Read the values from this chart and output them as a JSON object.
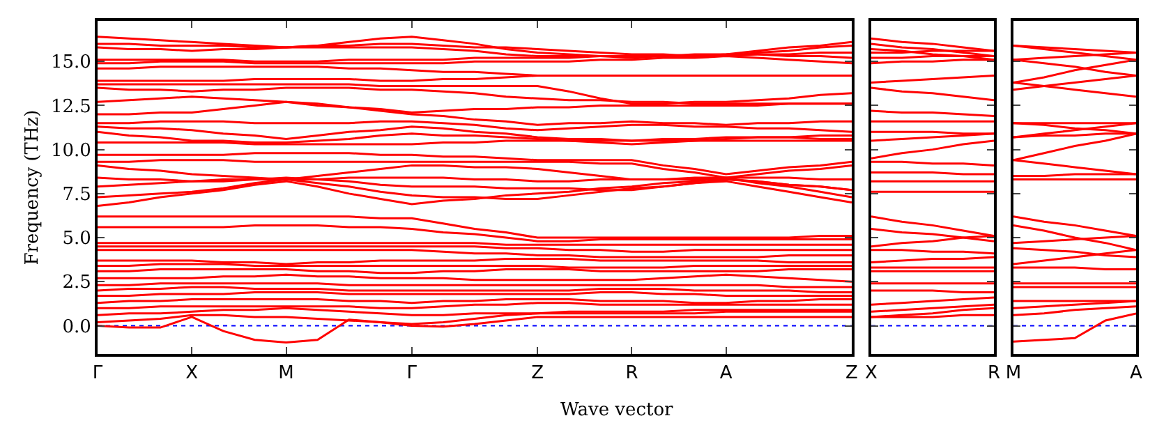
{
  "chart_data": [
    {
      "type": "line",
      "xlabel": "Wave vector",
      "ylabel": "Frequency (THz)",
      "categories": [
        "Γ",
        null,
        null,
        "X",
        null,
        null,
        "M",
        null,
        null,
        null,
        "Γ",
        null,
        null,
        null,
        "Z",
        null,
        null,
        "R",
        null,
        null,
        "A",
        null,
        null,
        null,
        "Z"
      ],
      "ylim": [
        -1.6,
        17.3
      ],
      "yticks": [
        {
          "value": 0,
          "label": "0.0"
        },
        {
          "value": 2.5,
          "label": "2.5"
        },
        {
          "value": 5,
          "label": "5.0"
        },
        {
          "value": 7.5,
          "label": "7.5"
        },
        {
          "value": 10,
          "label": "10.0"
        },
        {
          "value": 12.5,
          "label": "12.5"
        },
        {
          "value": 15,
          "label": "15.0"
        }
      ],
      "ref_lines": [
        {
          "axis": "y",
          "value": 0,
          "color": "#0000ff",
          "line_style": "dotted"
        }
      ],
      "grid": false,
      "line_style": "solid",
      "series": [
        {
          "color": "#ff0000",
          "values": [
            16.4,
            16.3,
            16.2,
            16.1,
            16.0,
            15.9,
            15.8,
            15.9,
            16.1,
            16.3,
            16.4,
            16.2,
            16.0,
            15.7,
            15.5,
            15.4,
            15.3,
            15.2,
            15.3,
            15.3,
            15.4,
            15.6,
            15.8,
            15.9,
            16.1
          ]
        },
        {
          "color": "#ff0000",
          "values": [
            16.0,
            16.0,
            15.9,
            15.9,
            15.9,
            15.8,
            15.8,
            15.9,
            15.9,
            16.0,
            16.0,
            15.9,
            15.8,
            15.8,
            15.7,
            15.6,
            15.5,
            15.4,
            15.4,
            15.3,
            15.3,
            15.5,
            15.6,
            15.8,
            15.9
          ]
        },
        {
          "color": "#ff0000",
          "values": [
            15.8,
            15.7,
            15.7,
            15.6,
            15.7,
            15.7,
            15.8,
            15.8,
            15.8,
            15.8,
            15.8,
            15.7,
            15.6,
            15.4,
            15.3,
            15.3,
            15.3,
            15.3,
            15.3,
            15.3,
            15.3,
            15.4,
            15.4,
            15.5,
            15.5
          ]
        },
        {
          "color": "#ff0000",
          "values": [
            15.1,
            15.1,
            15.1,
            15.1,
            15.1,
            15.0,
            15.0,
            15.0,
            15.1,
            15.1,
            15.1,
            15.1,
            15.2,
            15.2,
            15.2,
            15.2,
            15.3,
            15.3,
            15.3,
            15.4,
            15.4,
            15.4,
            15.3,
            15.3,
            15.2
          ]
        },
        {
          "color": "#ff0000",
          "values": [
            14.9,
            14.9,
            15.0,
            15.0,
            15.0,
            14.9,
            14.9,
            14.9,
            14.9,
            14.9,
            14.9,
            14.9,
            15.0,
            15.0,
            15.0,
            15.0,
            15.1,
            15.1,
            15.2,
            15.2,
            15.3,
            15.2,
            15.1,
            15.0,
            14.9
          ]
        },
        {
          "color": "#ff0000",
          "values": [
            14.6,
            14.6,
            14.7,
            14.7,
            14.7,
            14.7,
            14.7,
            14.7,
            14.6,
            14.6,
            14.5,
            14.4,
            14.4,
            14.3,
            14.2,
            14.2,
            14.2,
            14.2,
            14.2,
            14.2,
            14.2,
            14.2,
            14.2,
            14.2,
            14.2
          ]
        },
        {
          "color": "#ff0000",
          "values": [
            13.9,
            13.9,
            13.9,
            13.9,
            13.9,
            14.0,
            14.0,
            14.0,
            14.0,
            13.9,
            13.9,
            14.0,
            14.0,
            14.1,
            14.2,
            14.2,
            14.2,
            14.2,
            14.2,
            14.2,
            14.2,
            14.2,
            14.2,
            14.2,
            14.2
          ]
        },
        {
          "color": "#ff0000",
          "values": [
            13.7,
            13.7,
            13.7,
            13.7,
            13.7,
            13.7,
            13.7,
            13.7,
            13.7,
            13.6,
            13.6,
            13.6,
            13.6,
            13.6,
            13.6,
            13.3,
            12.9,
            12.6,
            12.6,
            12.7,
            12.7,
            12.8,
            12.9,
            13.1,
            13.2
          ]
        },
        {
          "color": "#ff0000",
          "values": [
            13.5,
            13.4,
            13.4,
            13.3,
            13.4,
            13.4,
            13.5,
            13.5,
            13.5,
            13.4,
            13.4,
            13.3,
            13.2,
            13.0,
            12.9,
            12.8,
            12.8,
            12.7,
            12.7,
            12.6,
            12.6,
            12.6,
            12.6,
            12.6,
            12.6
          ]
        },
        {
          "color": "#ff0000",
          "values": [
            12.7,
            12.8,
            12.9,
            13.0,
            12.9,
            12.8,
            12.7,
            12.6,
            12.4,
            12.3,
            12.1,
            12.2,
            12.3,
            12.3,
            12.4,
            12.4,
            12.5,
            12.5,
            12.5,
            12.5,
            12.5,
            12.5,
            12.6,
            12.6,
            12.6
          ]
        },
        {
          "color": "#ff0000",
          "values": [
            12.0,
            12.0,
            12.1,
            12.1,
            12.3,
            12.5,
            12.7,
            12.5,
            12.4,
            12.2,
            12.0,
            11.9,
            11.7,
            11.6,
            11.4,
            11.5,
            11.5,
            11.6,
            11.5,
            11.5,
            11.4,
            11.5,
            11.5,
            11.6,
            11.6
          ]
        },
        {
          "color": "#ff0000",
          "values": [
            11.5,
            11.5,
            11.6,
            11.6,
            11.6,
            11.5,
            11.5,
            11.5,
            11.5,
            11.6,
            11.6,
            11.5,
            11.4,
            11.2,
            11.1,
            11.2,
            11.3,
            11.4,
            11.4,
            11.3,
            11.3,
            11.2,
            11.2,
            11.1,
            11.0
          ]
        },
        {
          "color": "#ff0000",
          "values": [
            11.3,
            11.2,
            11.2,
            11.1,
            10.9,
            10.8,
            10.6,
            10.8,
            11.0,
            11.1,
            11.3,
            11.2,
            11.0,
            10.9,
            10.7,
            10.6,
            10.6,
            10.5,
            10.6,
            10.6,
            10.7,
            10.7,
            10.7,
            10.6,
            10.6
          ]
        },
        {
          "color": "#ff0000",
          "values": [
            11.0,
            10.8,
            10.7,
            10.5,
            10.5,
            10.4,
            10.4,
            10.5,
            10.6,
            10.8,
            10.9,
            10.8,
            10.8,
            10.7,
            10.6,
            10.5,
            10.4,
            10.3,
            10.4,
            10.5,
            10.6,
            10.7,
            10.7,
            10.8,
            10.8
          ]
        },
        {
          "color": "#ff0000",
          "values": [
            10.4,
            10.4,
            10.4,
            10.4,
            10.4,
            10.3,
            10.3,
            10.3,
            10.3,
            10.3,
            10.3,
            10.4,
            10.4,
            10.5,
            10.5,
            10.5,
            10.5,
            10.5,
            10.5,
            10.5,
            10.5,
            10.5,
            10.5,
            10.5,
            10.5
          ]
        },
        {
          "color": "#ff0000",
          "values": [
            9.7,
            9.7,
            9.7,
            9.7,
            9.7,
            9.8,
            9.8,
            9.8,
            9.8,
            9.7,
            9.7,
            9.6,
            9.6,
            9.5,
            9.4,
            9.4,
            9.4,
            9.4,
            9.1,
            8.9,
            8.6,
            8.8,
            9.0,
            9.1,
            9.3
          ]
        },
        {
          "color": "#ff0000",
          "values": [
            9.3,
            9.3,
            9.4,
            9.4,
            9.4,
            9.3,
            9.3,
            9.3,
            9.3,
            9.3,
            9.3,
            9.3,
            9.3,
            9.3,
            9.3,
            9.3,
            9.2,
            9.2,
            8.9,
            8.7,
            8.4,
            8.6,
            8.8,
            8.9,
            9.1
          ]
        },
        {
          "color": "#ff0000",
          "values": [
            9.1,
            8.9,
            8.8,
            8.6,
            8.5,
            8.4,
            8.3,
            8.5,
            8.7,
            8.9,
            9.1,
            9.1,
            9.0,
            9.0,
            8.9,
            8.7,
            8.5,
            8.3,
            8.3,
            8.4,
            8.4,
            8.4,
            8.4,
            8.3,
            8.3
          ]
        },
        {
          "color": "#ff0000",
          "values": [
            8.4,
            8.3,
            8.3,
            8.2,
            8.2,
            8.3,
            8.3,
            8.3,
            8.4,
            8.4,
            8.4,
            8.4,
            8.3,
            8.3,
            8.2,
            8.2,
            8.3,
            8.3,
            8.3,
            8.3,
            8.3,
            8.2,
            8.0,
            7.9,
            7.7
          ]
        },
        {
          "color": "#ff0000",
          "values": [
            7.9,
            8.0,
            8.1,
            8.2,
            8.3,
            8.3,
            8.4,
            8.3,
            8.2,
            8.0,
            7.9,
            7.9,
            7.9,
            7.8,
            7.8,
            7.8,
            7.7,
            7.7,
            7.9,
            8.1,
            8.3,
            8.2,
            8.0,
            7.9,
            7.7
          ]
        },
        {
          "color": "#ff0000",
          "values": [
            7.3,
            7.4,
            7.5,
            7.6,
            7.8,
            8.1,
            8.3,
            8.1,
            7.9,
            7.6,
            7.4,
            7.3,
            7.3,
            7.2,
            7.2,
            7.4,
            7.6,
            7.8,
            7.9,
            8.1,
            8.2,
            7.9,
            7.6,
            7.3,
            7.0
          ]
        },
        {
          "color": "#ff0000",
          "values": [
            6.8,
            7.0,
            7.3,
            7.5,
            7.7,
            8.0,
            8.2,
            7.9,
            7.5,
            7.2,
            6.9,
            7.1,
            7.2,
            7.4,
            7.5,
            7.6,
            7.8,
            7.9,
            8.1,
            8.2,
            8.4,
            8.1,
            7.9,
            7.6,
            7.3
          ]
        },
        {
          "color": "#ff0000",
          "values": [
            6.2,
            6.2,
            6.2,
            6.2,
            6.2,
            6.2,
            6.2,
            6.2,
            6.2,
            6.1,
            6.1,
            5.8,
            5.5,
            5.3,
            5.0,
            5.0,
            5.0,
            5.0,
            5.0,
            5.0,
            5.0,
            5.0,
            5.0,
            5.1,
            5.1
          ]
        },
        {
          "color": "#ff0000",
          "values": [
            5.6,
            5.6,
            5.6,
            5.6,
            5.6,
            5.7,
            5.7,
            5.7,
            5.6,
            5.6,
            5.5,
            5.3,
            5.2,
            5.0,
            4.8,
            4.8,
            4.9,
            4.9,
            4.9,
            4.9,
            4.9,
            4.9,
            4.9,
            4.9,
            4.9
          ]
        },
        {
          "color": "#ff0000",
          "values": [
            4.7,
            4.7,
            4.7,
            4.7,
            4.7,
            4.7,
            4.7,
            4.7,
            4.7,
            4.7,
            4.7,
            4.7,
            4.7,
            4.6,
            4.6,
            4.6,
            4.6,
            4.6,
            4.6,
            4.6,
            4.6,
            4.6,
            4.6,
            4.6,
            4.6
          ]
        },
        {
          "color": "#ff0000",
          "values": [
            4.5,
            4.5,
            4.5,
            4.5,
            4.5,
            4.5,
            4.5,
            4.5,
            4.5,
            4.5,
            4.5,
            4.5,
            4.5,
            4.4,
            4.4,
            4.3,
            4.3,
            4.2,
            4.2,
            4.3,
            4.3,
            4.3,
            4.3,
            4.3,
            4.3
          ]
        },
        {
          "color": "#ff0000",
          "values": [
            4.3,
            4.3,
            4.3,
            4.3,
            4.3,
            4.3,
            4.3,
            4.3,
            4.3,
            4.3,
            4.3,
            4.2,
            4.1,
            4.1,
            4.0,
            4.0,
            3.9,
            3.9,
            3.9,
            3.9,
            3.9,
            3.9,
            4.0,
            4.0,
            4.0
          ]
        },
        {
          "color": "#ff0000",
          "values": [
            3.7,
            3.7,
            3.7,
            3.7,
            3.6,
            3.6,
            3.5,
            3.6,
            3.6,
            3.7,
            3.7,
            3.7,
            3.7,
            3.8,
            3.8,
            3.8,
            3.7,
            3.7,
            3.7,
            3.7,
            3.7,
            3.7,
            3.6,
            3.6,
            3.6
          ]
        },
        {
          "color": "#ff0000",
          "values": [
            3.4,
            3.4,
            3.5,
            3.5,
            3.5,
            3.4,
            3.4,
            3.4,
            3.4,
            3.4,
            3.4,
            3.4,
            3.4,
            3.4,
            3.4,
            3.3,
            3.3,
            3.3,
            3.3,
            3.4,
            3.4,
            3.4,
            3.4,
            3.4,
            3.4
          ]
        },
        {
          "color": "#ff0000",
          "values": [
            3.1,
            3.1,
            3.2,
            3.2,
            3.2,
            3.2,
            3.2,
            3.1,
            3.1,
            3.0,
            3.0,
            3.1,
            3.1,
            3.2,
            3.2,
            3.2,
            3.1,
            3.1,
            3.1,
            3.1,
            3.1,
            3.1,
            3.2,
            3.2,
            3.2
          ]
        },
        {
          "color": "#ff0000",
          "values": [
            2.7,
            2.7,
            2.7,
            2.7,
            2.8,
            2.8,
            2.9,
            2.8,
            2.8,
            2.7,
            2.7,
            2.7,
            2.6,
            2.6,
            2.6,
            2.6,
            2.6,
            2.6,
            2.7,
            2.8,
            2.9,
            2.8,
            2.7,
            2.6,
            2.5
          ]
        },
        {
          "color": "#ff0000",
          "values": [
            2.3,
            2.3,
            2.4,
            2.4,
            2.4,
            2.4,
            2.4,
            2.4,
            2.3,
            2.3,
            2.3,
            2.3,
            2.3,
            2.3,
            2.3,
            2.3,
            2.3,
            2.3,
            2.3,
            2.3,
            2.3,
            2.3,
            2.2,
            2.2,
            2.2
          ]
        },
        {
          "color": "#ff0000",
          "values": [
            2.0,
            2.1,
            2.1,
            2.2,
            2.2,
            2.1,
            2.1,
            2.1,
            2.0,
            2.0,
            2.0,
            2.0,
            2.0,
            2.0,
            2.0,
            2.0,
            2.1,
            2.1,
            2.1,
            2.0,
            2.0,
            2.0,
            2.0,
            1.9,
            1.9
          ]
        },
        {
          "color": "#ff0000",
          "values": [
            1.7,
            1.7,
            1.8,
            1.8,
            1.8,
            1.9,
            1.9,
            1.9,
            1.8,
            1.8,
            1.8,
            1.8,
            1.8,
            1.8,
            1.8,
            1.8,
            1.9,
            1.9,
            1.8,
            1.8,
            1.7,
            1.7,
            1.7,
            1.7,
            1.7
          ]
        },
        {
          "color": "#ff0000",
          "values": [
            1.3,
            1.4,
            1.4,
            1.5,
            1.5,
            1.5,
            1.5,
            1.5,
            1.4,
            1.4,
            1.3,
            1.4,
            1.4,
            1.5,
            1.5,
            1.5,
            1.4,
            1.4,
            1.4,
            1.3,
            1.3,
            1.4,
            1.4,
            1.5,
            1.5
          ]
        },
        {
          "color": "#ff0000",
          "values": [
            1.0,
            1.0,
            1.1,
            1.1,
            1.1,
            1.1,
            1.1,
            1.1,
            1.1,
            1.0,
            1.0,
            1.1,
            1.2,
            1.2,
            1.3,
            1.3,
            1.2,
            1.2,
            1.2,
            1.2,
            1.2,
            1.2,
            1.2,
            1.2,
            1.2
          ]
        },
        {
          "color": "#ff0000",
          "values": [
            0.6,
            0.7,
            0.7,
            0.8,
            0.9,
            0.9,
            1.0,
            0.9,
            0.8,
            0.7,
            0.6,
            0.6,
            0.7,
            0.7,
            0.7,
            0.8,
            0.8,
            0.8,
            0.8,
            0.9,
            0.9,
            0.9,
            0.9,
            0.9,
            0.9
          ]
        },
        {
          "color": "#ff0000",
          "values": [
            0.2,
            0.3,
            0.4,
            0.6,
            0.6,
            0.5,
            0.5,
            0.4,
            0.3,
            0.2,
            0.1,
            0.2,
            0.4,
            0.6,
            0.7,
            0.7,
            0.7,
            0.7,
            0.7,
            0.7,
            0.8,
            0.8,
            0.8,
            0.8,
            0.8
          ]
        },
        {
          "color": "#ff0000",
          "values": [
            0,
            -0.1,
            -0.1,
            0.5,
            -0.3,
            -0.8,
            -0.95,
            -0.8,
            0.35,
            0.2,
            0,
            -0.05,
            0.1,
            0.3,
            0.5,
            0.5,
            0.5,
            0.5,
            0.5,
            0.5,
            0.5,
            0.5,
            0.5,
            0.5,
            0.5
          ]
        }
      ]
    },
    {
      "type": "line",
      "categories": [
        "X",
        null,
        null,
        null,
        "R"
      ],
      "ylim": [
        -1.6,
        17.3
      ],
      "yticks": [
        {
          "value": 0,
          "label": null
        },
        {
          "value": 2.5,
          "label": null
        },
        {
          "value": 5,
          "label": null
        },
        {
          "value": 7.5,
          "label": null
        },
        {
          "value": 10,
          "label": null
        },
        {
          "value": 12.5,
          "label": null
        },
        {
          "value": 15,
          "label": null
        }
      ],
      "tick_labels": "x",
      "ref_lines": [
        {
          "axis": "y",
          "value": 0,
          "color": "#0000ff",
          "line_style": "dotted"
        }
      ],
      "grid": false,
      "line_style": "solid",
      "series": [
        {
          "color": "#ff0000",
          "values": [
            16.3,
            16.1,
            16.0,
            15.8,
            15.6
          ]
        },
        {
          "color": "#ff0000",
          "values": [
            16.0,
            15.8,
            15.7,
            15.5,
            15.3
          ]
        },
        {
          "color": "#ff0000",
          "values": [
            15.7,
            15.6,
            15.4,
            15.3,
            15.1
          ]
        },
        {
          "color": "#ff0000",
          "values": [
            15.5,
            15.5,
            15.6,
            15.6,
            15.6
          ]
        },
        {
          "color": "#ff0000",
          "values": [
            15.2,
            15.2,
            15.3,
            15.3,
            15.3
          ]
        },
        {
          "color": "#ff0000",
          "values": [
            14.9,
            15.0,
            15.0,
            15.1,
            15.1
          ]
        },
        {
          "color": "#ff0000",
          "values": [
            13.8,
            13.9,
            14.0,
            14.1,
            14.2
          ]
        },
        {
          "color": "#ff0000",
          "values": [
            13.5,
            13.3,
            13.2,
            13.0,
            12.8
          ]
        },
        {
          "color": "#ff0000",
          "values": [
            12.2,
            12.1,
            12.1,
            12.0,
            11.9
          ]
        },
        {
          "color": "#ff0000",
          "values": [
            11.6,
            11.6,
            11.6,
            11.6,
            11.6
          ]
        },
        {
          "color": "#ff0000",
          "values": [
            11.0,
            11.0,
            11.0,
            10.9,
            10.9
          ]
        },
        {
          "color": "#ff0000",
          "values": [
            10.5,
            10.6,
            10.7,
            10.8,
            10.9
          ]
        },
        {
          "color": "#ff0000",
          "values": [
            9.5,
            9.8,
            10.0,
            10.3,
            10.5
          ]
        },
        {
          "color": "#ff0000",
          "values": [
            9.3,
            9.3,
            9.2,
            9.2,
            9.1
          ]
        },
        {
          "color": "#ff0000",
          "values": [
            8.7,
            8.7,
            8.7,
            8.6,
            8.6
          ]
        },
        {
          "color": "#ff0000",
          "values": [
            8.2,
            8.2,
            8.2,
            8.2,
            8.2
          ]
        },
        {
          "color": "#ff0000",
          "values": [
            7.6,
            7.6,
            7.6,
            7.6,
            7.6
          ]
        },
        {
          "color": "#ff0000",
          "values": [
            6.2,
            5.9,
            5.7,
            5.4,
            5.1
          ]
        },
        {
          "color": "#ff0000",
          "values": [
            5.5,
            5.3,
            5.2,
            5.0,
            4.8
          ]
        },
        {
          "color": "#ff0000",
          "values": [
            4.5,
            4.7,
            4.8,
            5.0,
            5.1
          ]
        },
        {
          "color": "#ff0000",
          "values": [
            4.3,
            4.3,
            4.2,
            4.2,
            4.1
          ]
        },
        {
          "color": "#ff0000",
          "values": [
            3.6,
            3.7,
            3.8,
            3.8,
            3.9
          ]
        },
        {
          "color": "#ff0000",
          "values": [
            3.3,
            3.3,
            3.3,
            3.3,
            3.3
          ]
        },
        {
          "color": "#ff0000",
          "values": [
            3.1,
            3.1,
            3.1,
            3.1,
            3.1
          ]
        },
        {
          "color": "#ff0000",
          "values": [
            2.4,
            2.4,
            2.4,
            2.4,
            2.4
          ]
        },
        {
          "color": "#ff0000",
          "values": [
            2.0,
            2.0,
            2.0,
            1.9,
            1.9
          ]
        },
        {
          "color": "#ff0000",
          "values": [
            1.2,
            1.3,
            1.4,
            1.5,
            1.6
          ]
        },
        {
          "color": "#ff0000",
          "values": [
            0.8,
            0.9,
            1.0,
            1.1,
            1.2
          ]
        },
        {
          "color": "#ff0000",
          "values": [
            0.5,
            0.6,
            0.7,
            0.9,
            1.0
          ]
        },
        {
          "color": "#ff0000",
          "values": [
            0.5,
            0.5,
            0.5,
            0.6,
            0.6
          ]
        }
      ]
    },
    {
      "type": "line",
      "categories": [
        "M",
        null,
        null,
        null,
        "A"
      ],
      "ylim": [
        -1.6,
        17.3
      ],
      "yticks": [
        {
          "value": 0,
          "label": null
        },
        {
          "value": 2.5,
          "label": null
        },
        {
          "value": 5,
          "label": null
        },
        {
          "value": 7.5,
          "label": null
        },
        {
          "value": 10,
          "label": null
        },
        {
          "value": 12.5,
          "label": null
        },
        {
          "value": 15,
          "label": null
        }
      ],
      "tick_labels": "x",
      "ref_lines": [
        {
          "axis": "y",
          "value": 0,
          "color": "#0000ff",
          "line_style": "dotted"
        }
      ],
      "grid": false,
      "line_style": "solid",
      "series": [
        {
          "color": "#ff0000",
          "values": [
            15.9,
            15.8,
            15.7,
            15.6,
            15.5
          ]
        },
        {
          "color": "#ff0000",
          "values": [
            15.9,
            15.7,
            15.5,
            15.3,
            15.1
          ]
        },
        {
          "color": "#ff0000",
          "values": [
            15.1,
            15.2,
            15.3,
            15.4,
            15.5
          ]
        },
        {
          "color": "#ff0000",
          "values": [
            15.1,
            14.9,
            14.7,
            14.4,
            14.2
          ]
        },
        {
          "color": "#ff0000",
          "values": [
            13.8,
            13.6,
            13.4,
            13.2,
            13.0
          ]
        },
        {
          "color": "#ff0000",
          "values": [
            13.8,
            14.1,
            14.5,
            14.8,
            15.1
          ]
        },
        {
          "color": "#ff0000",
          "values": [
            13.4,
            13.6,
            13.8,
            14.0,
            14.2
          ]
        },
        {
          "color": "#ff0000",
          "values": [
            11.5,
            11.5,
            11.5,
            11.5,
            11.5
          ]
        },
        {
          "color": "#ff0000",
          "values": [
            11.5,
            11.4,
            11.2,
            11.1,
            10.9
          ]
        },
        {
          "color": "#ff0000",
          "values": [
            10.7,
            10.9,
            11.1,
            11.3,
            11.5
          ]
        },
        {
          "color": "#ff0000",
          "values": [
            10.7,
            10.8,
            10.8,
            10.9,
            10.9
          ]
        },
        {
          "color": "#ff0000",
          "values": [
            9.4,
            9.8,
            10.2,
            10.5,
            10.9
          ]
        },
        {
          "color": "#ff0000",
          "values": [
            9.4,
            9.2,
            9.0,
            8.8,
            8.6
          ]
        },
        {
          "color": "#ff0000",
          "values": [
            8.5,
            8.5,
            8.6,
            8.6,
            8.6
          ]
        },
        {
          "color": "#ff0000",
          "values": [
            8.3,
            8.3,
            8.3,
            8.3,
            8.3
          ]
        },
        {
          "color": "#ff0000",
          "values": [
            6.2,
            5.9,
            5.7,
            5.4,
            5.1
          ]
        },
        {
          "color": "#ff0000",
          "values": [
            5.7,
            5.4,
            5.0,
            4.7,
            4.3
          ]
        },
        {
          "color": "#ff0000",
          "values": [
            4.7,
            4.8,
            4.9,
            5.0,
            5.1
          ]
        },
        {
          "color": "#ff0000",
          "values": [
            4.4,
            4.3,
            4.2,
            4.0,
            3.9
          ]
        },
        {
          "color": "#ff0000",
          "values": [
            3.5,
            3.7,
            3.9,
            4.1,
            4.3
          ]
        },
        {
          "color": "#ff0000",
          "values": [
            3.3,
            3.3,
            3.3,
            3.2,
            3.2
          ]
        },
        {
          "color": "#ff0000",
          "values": [
            2.4,
            2.4,
            2.4,
            2.4,
            2.4
          ]
        },
        {
          "color": "#ff0000",
          "values": [
            2.2,
            2.2,
            2.2,
            2.2,
            2.2
          ]
        },
        {
          "color": "#ff0000",
          "values": [
            1.4,
            1.4,
            1.4,
            1.4,
            1.4
          ]
        },
        {
          "color": "#ff0000",
          "values": [
            1.0,
            1.1,
            1.2,
            1.3,
            1.4
          ]
        },
        {
          "color": "#ff0000",
          "values": [
            0.6,
            0.7,
            0.9,
            1.0,
            1.1
          ]
        },
        {
          "color": "#ff0000",
          "values": [
            -0.9,
            -0.8,
            -0.7,
            0.3,
            0.7
          ]
        }
      ]
    }
  ]
}
